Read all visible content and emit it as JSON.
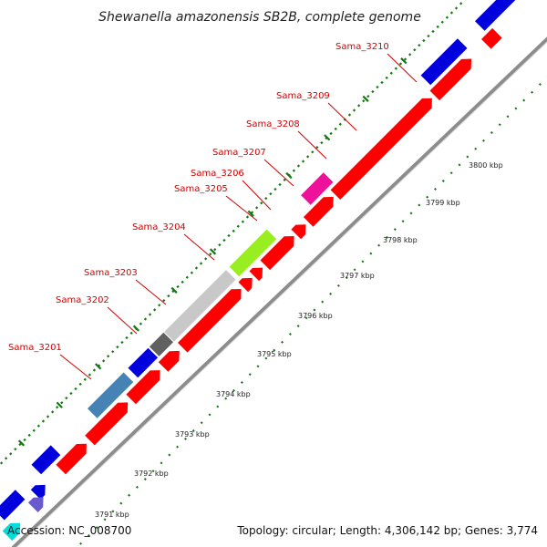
{
  "title": "Shewanella amazonensis SB2B, complete genome",
  "footer": {
    "accession": "Accession: NC_008700",
    "topology": "Topology: circular; Length: 4,306,142 bp; Genes: 3,774"
  },
  "kbp_labels": [
    "3791 kbp",
    "3792 kbp",
    "3793 kbp",
    "3794 kbp",
    "3795 kbp",
    "3796 kbp",
    "3797 kbp",
    "3798 kbp",
    "3799 kbp",
    "3800 kbp"
  ],
  "colors": {
    "backbone": "#909090",
    "gene_red": "#ff0000",
    "gene_blue": "#0000dd",
    "gene_steelblue": "#4682b4",
    "gene_darkgray": "#606060",
    "gene_lightgray": "#c8c8c8",
    "gene_lime": "#99ee22",
    "gene_magenta": "#ee1199",
    "gene_slateblue": "#6a5acd",
    "gene_cyan": "#00dddd",
    "label_red": "#d40000",
    "ticks_green": "#117711"
  },
  "genes": [
    {
      "name": "Sama_3201",
      "color": "#4682b4"
    },
    {
      "name": "Sama_3202",
      "color": "#0000dd"
    },
    {
      "name": "Sama_3203",
      "color": "#606060"
    },
    {
      "name": "Sama_3204",
      "color": "#c8c8c8"
    },
    {
      "name": "Sama_3205",
      "color": "#99ee22"
    },
    {
      "name": "Sama_3206",
      "color": "#ff0000"
    },
    {
      "name": "Sama_3207",
      "color": "#ff0000"
    },
    {
      "name": "Sama_3208",
      "color": "#ff0000"
    },
    {
      "name": "Sama_3209",
      "color": "#ee1199"
    },
    {
      "name": "Sama_3210",
      "color": "#0000dd"
    }
  ]
}
